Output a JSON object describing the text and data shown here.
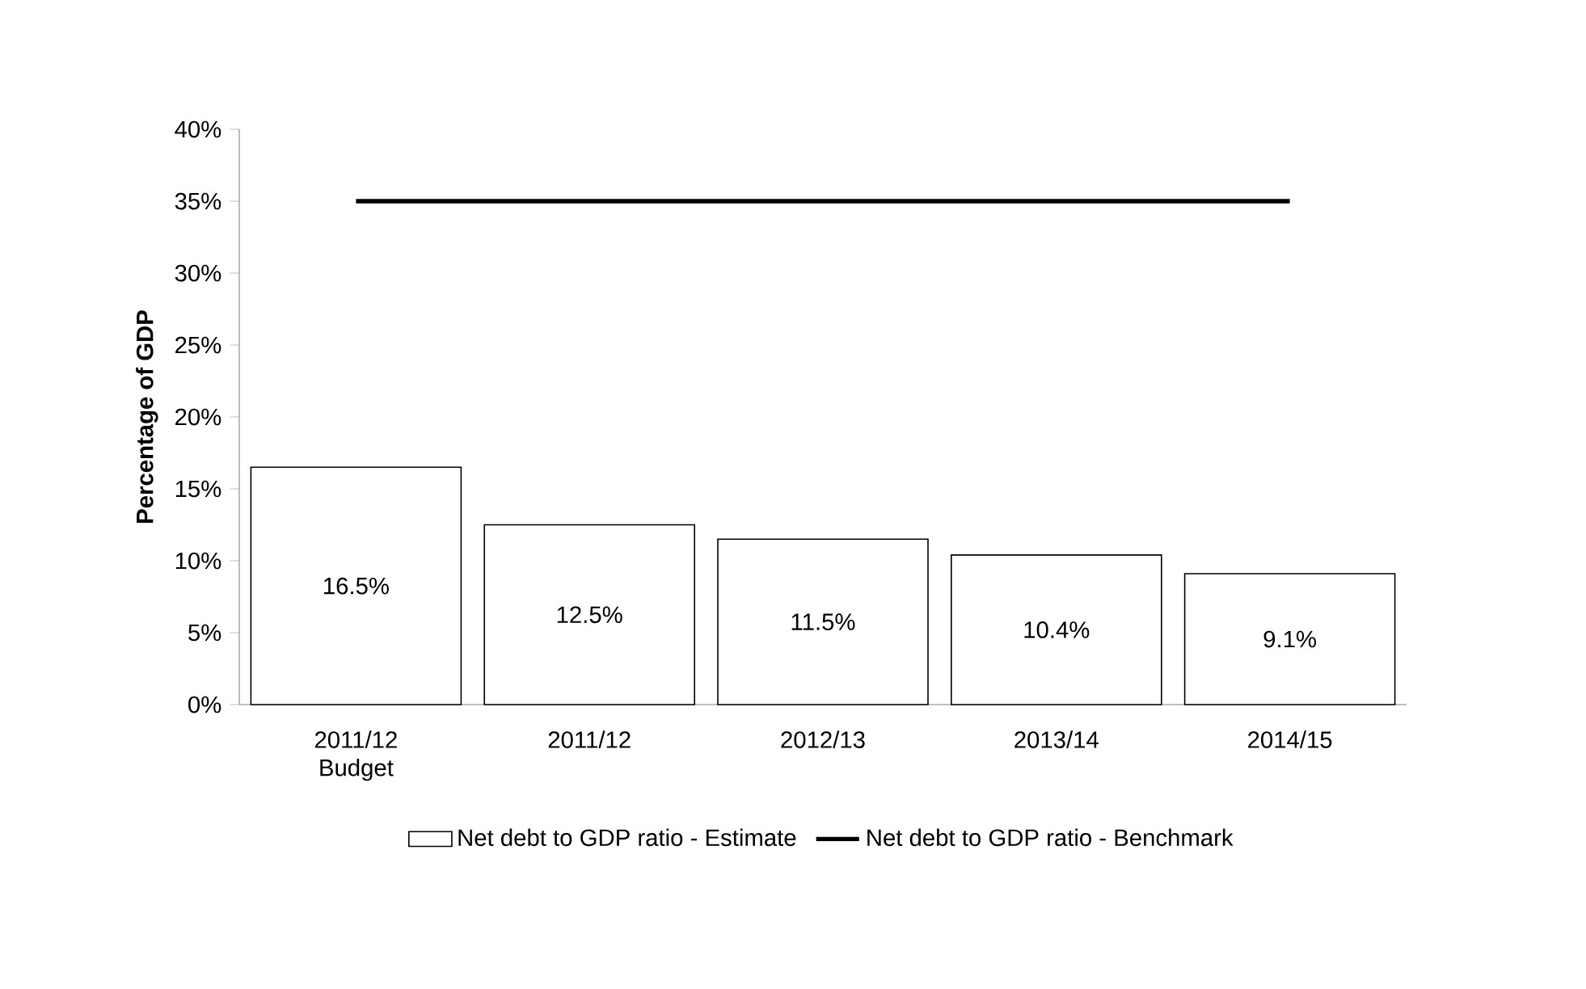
{
  "chart_data": {
    "type": "bar",
    "ylabel": "Percentage of GDP",
    "categories": [
      "2011/12 Budget",
      "2011/12",
      "2012/13",
      "2013/14",
      "2014/15"
    ],
    "series": [
      {
        "name": "Net debt to GDP ratio - Estimate",
        "color": "#ffffff",
        "values": [
          16.5,
          12.5,
          11.5,
          10.4,
          9.1
        ],
        "value_labels": [
          "16.5%",
          "12.5%",
          "11.5%",
          "10.4%",
          "9.1%"
        ]
      },
      {
        "name": "Net debt to GDP ratio - Benchmark",
        "type": "line",
        "color": "#000000",
        "values": [
          35,
          35,
          35,
          35,
          35
        ]
      }
    ],
    "ylim": [
      0,
      40
    ],
    "yticks": [
      {
        "value": 0,
        "label": "0%"
      },
      {
        "value": 5,
        "label": "5%"
      },
      {
        "value": 10,
        "label": "10%"
      },
      {
        "value": 15,
        "label": "15%"
      },
      {
        "value": 20,
        "label": "20%"
      },
      {
        "value": 25,
        "label": "25%"
      },
      {
        "value": 30,
        "label": "30%"
      },
      {
        "value": 35,
        "label": "35%"
      },
      {
        "value": 40,
        "label": "40%"
      }
    ],
    "legend": "bottom",
    "marker": "none",
    "line_style": "solid"
  }
}
